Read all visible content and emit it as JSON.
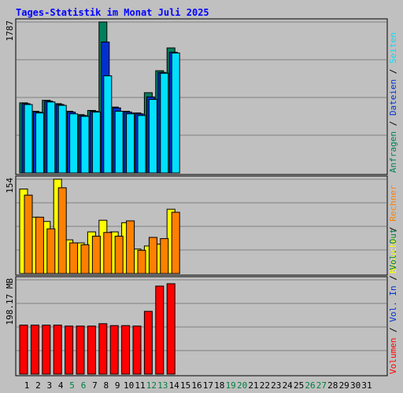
{
  "chart_data": {
    "type": "bar",
    "title": "Tages-Statistik im Monat Juli 2025",
    "categories": [
      "1",
      "2",
      "3",
      "4",
      "5",
      "6",
      "7",
      "8",
      "9",
      "10",
      "11",
      "12",
      "13",
      "14",
      "15",
      "16",
      "17",
      "18",
      "19",
      "20",
      "21",
      "22",
      "23",
      "24",
      "25",
      "26",
      "27",
      "28",
      "29",
      "30",
      "31"
    ],
    "weekend_days": [
      "5",
      "6",
      "12",
      "13",
      "19",
      "20",
      "26",
      "27"
    ],
    "colors": {
      "title": "#0000ff",
      "weekday_tick": "#000000",
      "weekend_tick": "#008040",
      "anfragen": "#00805c",
      "dateien": "#0030d0",
      "seiten": "#00e0ff",
      "besuche": "#ffff00",
      "rechner": "#ff8000",
      "vol_out": "#008040",
      "vol_in": "#0030d0",
      "volumen": "#ff0000",
      "panel": "#c0c0c0"
    },
    "panels": [
      {
        "name": "requests",
        "max_label": "1787",
        "ylim": [
          0,
          1787
        ],
        "legend": [
          {
            "label": "Anfragen",
            "color": "#00805c"
          },
          {
            "label": "Dateien",
            "color": "#0030d0"
          },
          {
            "label": "Seiten",
            "color": "#00e0ff"
          }
        ],
        "series": [
          {
            "name": "Anfragen",
            "values": [
              830,
              730,
              860,
              820,
              730,
              690,
              740,
              1787,
              780,
              730,
              710,
              950,
              1210,
              1480
            ]
          },
          {
            "name": "Dateien",
            "values": [
              820,
              720,
              850,
              810,
              720,
              680,
              730,
              1550,
              770,
              720,
              700,
              900,
              1190,
              1430
            ]
          },
          {
            "name": "Seiten",
            "values": [
              810,
              710,
              840,
              800,
              700,
              670,
              720,
              1150,
              730,
              700,
              680,
              870,
              1180,
              1420
            ]
          }
        ]
      },
      {
        "name": "visits",
        "max_label": "154",
        "ylim": [
          0,
          154
        ],
        "legend": [
          {
            "label": "Besuche",
            "color": "#ffff00"
          },
          {
            "label": "Rechner",
            "color": "#ff8000"
          }
        ],
        "series": [
          {
            "name": "Besuche",
            "values": [
              138,
              92,
              85,
              154,
              55,
              50,
              68,
              87,
              68,
              83,
              40,
              45,
              48,
              105
            ]
          },
          {
            "name": "Rechner",
            "values": [
              128,
              92,
              73,
              140,
              50,
              47,
              61,
              67,
              61,
              86,
              38,
              59,
              57,
              100
            ]
          }
        ]
      },
      {
        "name": "volume",
        "max_label": "198.17 MB",
        "ylim": [
          0,
          198.17
        ],
        "legend": [
          {
            "label": "Volumen",
            "color": "#ff0000"
          },
          {
            "label": "Vol. In",
            "color": "#0030d0"
          },
          {
            "label": "Vol. Out",
            "color": "#008040"
          }
        ],
        "series": [
          {
            "name": "Volumen",
            "values": [
              103,
              103,
              103,
              103,
              101,
              101,
              101,
              106,
              102,
              102,
              101,
              132,
              185,
              190
            ]
          }
        ]
      }
    ]
  }
}
